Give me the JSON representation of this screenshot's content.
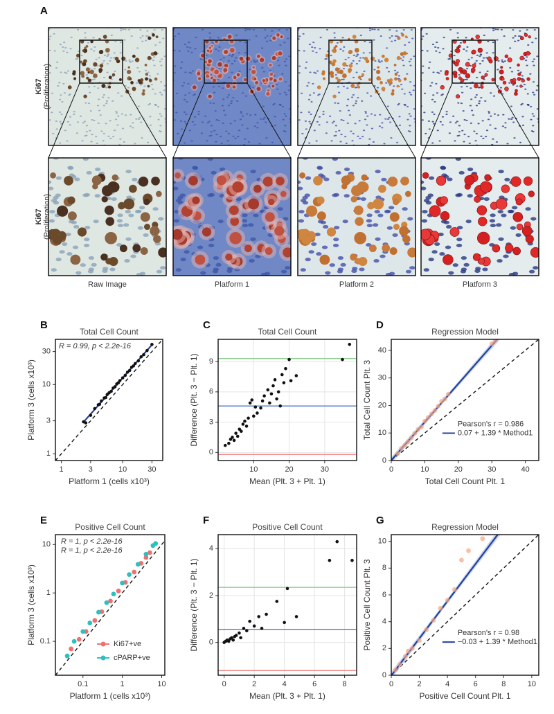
{
  "figure_a": {
    "panel": "A",
    "rows": [
      {
        "label": "Ki67",
        "sublabel": "(Proliferation)"
      },
      {
        "label": "Ki67",
        "sublabel": "(Proliferation)"
      }
    ],
    "columns": [
      "Raw Image",
      "Platform 1",
      "Platform 2",
      "Platform 3"
    ]
  },
  "chart_data": [
    {
      "panel": "B",
      "type": "scatter",
      "title": "Total Cell Count",
      "xlabel": "Platform 1 (cells x10³)",
      "ylabel": "Platform 3 (cells x10³)",
      "log": true,
      "grid": false,
      "identity_line": true,
      "xlim": [
        0.8,
        45
      ],
      "ylim": [
        0.8,
        45
      ],
      "xticks": [
        1,
        3,
        10,
        30
      ],
      "yticks": [
        1,
        3,
        10,
        30
      ],
      "annotation": "R = 0.99, p < 2.2e-16",
      "fit": {
        "intercept": 0,
        "slope": 1.25,
        "color": "#1f3f8f"
      },
      "series": [
        {
          "color": "#111111",
          "x": [
            2.3,
            2.5,
            3,
            3.5,
            4,
            4.2,
            4.5,
            5,
            5.3,
            5.6,
            6,
            6.5,
            7,
            7.5,
            8,
            8.5,
            9,
            10,
            11,
            12,
            13,
            14,
            15,
            16,
            18,
            20,
            22,
            25,
            30
          ],
          "values": [
            2.9,
            2.8,
            3.6,
            4.5,
            5.1,
            5.2,
            5.8,
            6.4,
            6.5,
            7.2,
            7.6,
            8.0,
            8.9,
            9.3,
            10.2,
            10.6,
            11.4,
            12.5,
            13.6,
            15.1,
            16.0,
            17.8,
            18.6,
            20.1,
            22.0,
            25.2,
            27.0,
            31.0,
            38.0
          ]
        }
      ]
    },
    {
      "panel": "C",
      "type": "scatter",
      "title": "Total Cell Count",
      "xlabel": "Mean (Plt. 3 + Plt. 1)",
      "ylabel": "Difference (Plt. 3 − Plt. 1)",
      "log": false,
      "grid": true,
      "identity_line": false,
      "xlim": [
        0,
        39
      ],
      "ylim": [
        -0.8,
        11.2
      ],
      "xticks": [
        10,
        20,
        30
      ],
      "yticks": [
        0,
        3,
        6,
        9
      ],
      "hlines": [
        {
          "value": 9.3,
          "color": "#8fd08f"
        },
        {
          "value": 4.6,
          "color": "#5a7fc8"
        },
        {
          "value": -0.2,
          "color": "#f08a8a"
        }
      ],
      "series": [
        {
          "color": "#111111",
          "x": [
            2,
            3,
            3.5,
            4,
            4.5,
            5,
            5.5,
            6,
            6.5,
            7,
            7.5,
            8,
            8.5,
            9,
            9.5,
            10,
            10.5,
            11,
            12,
            12.5,
            13,
            14,
            14.5,
            15,
            15.5,
            16,
            16.5,
            17,
            17.5,
            18,
            18.5,
            19,
            20,
            20.5,
            22,
            35,
            37
          ],
          "values": [
            0.7,
            0.9,
            1.3,
            1.5,
            1.2,
            1.9,
            1.6,
            2.3,
            2.1,
            2.8,
            3.1,
            2.6,
            3.4,
            4.9,
            5.2,
            3.6,
            4.5,
            3.9,
            4.4,
            5.1,
            5.6,
            6.2,
            4.9,
            5.8,
            6.6,
            7.2,
            5.3,
            6.0,
            4.6,
            7.7,
            6.9,
            8.3,
            9.2,
            7.1,
            7.6,
            9.2,
            10.7
          ]
        }
      ]
    },
    {
      "panel": "D",
      "type": "scatter",
      "title": "Regression Model",
      "xlabel": "Total Cell Count Plt. 1",
      "ylabel": "Total Cell Count Plt. 3",
      "log": false,
      "grid": false,
      "identity_line": true,
      "xlim": [
        0,
        44
      ],
      "ylim": [
        0,
        44
      ],
      "xticks": [
        0,
        10,
        20,
        30,
        40
      ],
      "yticks": [
        0,
        10,
        20,
        30,
        40
      ],
      "stat_label": "Pearson's r = 0.986",
      "fit": {
        "intercept": 0.07,
        "slope": 1.39,
        "color": "#1f3f9f",
        "label": "0.07 + 1.39 * Method1"
      },
      "series": [
        {
          "color": "#f4a582",
          "x": [
            2,
            3,
            4,
            5,
            6,
            7,
            8,
            9,
            10,
            11,
            12,
            13,
            14,
            15,
            16,
            17,
            30,
            31
          ],
          "values": [
            2.6,
            4.4,
            5.5,
            6.8,
            8.2,
            9.9,
            11.3,
            12.2,
            14.3,
            15.6,
            16.9,
            18.2,
            19.8,
            21.5,
            22.4,
            24.1,
            42.4,
            43.5
          ]
        }
      ]
    },
    {
      "panel": "E",
      "type": "scatter",
      "title": "Positive Cell Count",
      "xlabel": "Platform 1 (cells x10³)",
      "ylabel": "Platform 3 (cells x10³)",
      "log": true,
      "grid": false,
      "identity_line": true,
      "xlim": [
        0.02,
        12
      ],
      "ylim": [
        0.02,
        16
      ],
      "xticks": [
        0.1,
        1,
        10
      ],
      "yticks": [
        0.1,
        1,
        10
      ],
      "series": [
        {
          "name": "Ki67+ve",
          "color": "#f07070",
          "annotation": "R = 1, p < 2.2e-16",
          "x": [
            0.05,
            0.08,
            0.12,
            0.2,
            0.3,
            0.5,
            0.8,
            1.2,
            2,
            3,
            4,
            5
          ],
          "values": [
            0.07,
            0.11,
            0.16,
            0.27,
            0.41,
            0.68,
            1.1,
            1.65,
            2.7,
            4.1,
            5.4,
            6.8
          ]
        },
        {
          "name": "cPARP+ve",
          "color": "#2cc0c0",
          "annotation": "R = 1, p < 2.2e-16",
          "x": [
            0.04,
            0.06,
            0.1,
            0.15,
            0.25,
            0.4,
            0.6,
            1,
            1.5,
            2.5,
            4,
            6,
            7
          ],
          "values": [
            0.05,
            0.1,
            0.16,
            0.24,
            0.4,
            0.63,
            0.95,
            1.6,
            2.4,
            3.9,
            6.3,
            9.5,
            10.5
          ]
        }
      ]
    },
    {
      "panel": "F",
      "type": "scatter",
      "title": "Positive Cell Count",
      "xlabel": "Mean (Plt. 3 + Plt. 1)",
      "ylabel": "Difference (Plt. 3 − Plt. 1)",
      "log": false,
      "grid": true,
      "identity_line": false,
      "xlim": [
        -0.4,
        8.8
      ],
      "ylim": [
        -1.4,
        4.6
      ],
      "xticks": [
        0,
        2,
        4,
        6,
        8
      ],
      "yticks": [
        0,
        2,
        4
      ],
      "hlines": [
        {
          "value": 2.35,
          "color": "#8fd08f"
        },
        {
          "value": 0.55,
          "color": "#5a7fc8"
        },
        {
          "value": -1.2,
          "color": "#f08a8a"
        }
      ],
      "series": [
        {
          "color": "#111111",
          "x": [
            0,
            0.1,
            0.2,
            0.3,
            0.4,
            0.5,
            0.6,
            0.7,
            0.8,
            1,
            1.1,
            1.3,
            1.5,
            1.7,
            2,
            2.3,
            2.5,
            2.8,
            3.5,
            4,
            4.2,
            4.8,
            7,
            7.5,
            8.5
          ],
          "values": [
            0,
            0.05,
            0.1,
            0.05,
            0.15,
            0.2,
            0.1,
            0.25,
            0.3,
            0.4,
            0.2,
            0.6,
            0.5,
            0.9,
            0.7,
            1.1,
            0.6,
            1.2,
            1.75,
            0.85,
            2.3,
            1.1,
            3.5,
            4.3,
            3.5
          ]
        }
      ]
    },
    {
      "panel": "G",
      "type": "scatter",
      "title": "Regression Model",
      "xlabel": "Positive Cell Count Plt. 1",
      "ylabel": "Positive Cell Count Plt. 3",
      "log": false,
      "grid": false,
      "identity_line": true,
      "xlim": [
        0,
        10.5
      ],
      "ylim": [
        0,
        10.5
      ],
      "xticks": [
        0,
        2,
        4,
        6,
        8,
        10
      ],
      "yticks": [
        0,
        2,
        4,
        6,
        8,
        10
      ],
      "stat_label": "Pearson's r = 0.98",
      "fit": {
        "intercept": -0.03,
        "slope": 1.39,
        "color": "#1f3f9f",
        "label": "−0.03 + 1.39 * Method1"
      },
      "series": [
        {
          "color": "#f4a582",
          "x": [
            0.3,
            0.6,
            1,
            1.2,
            1.5,
            2,
            2.5,
            3,
            3.5,
            4,
            4.5,
            5,
            5.5,
            6.5
          ],
          "values": [
            0.4,
            0.8,
            1.4,
            1.8,
            2.0,
            2.6,
            3.4,
            4.1,
            5.0,
            5.6,
            6.4,
            8.6,
            9.3,
            10.2
          ]
        }
      ]
    }
  ]
}
